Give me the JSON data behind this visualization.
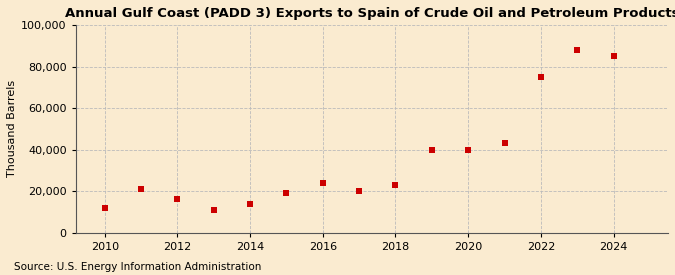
{
  "title": "Annual Gulf Coast (PADD 3) Exports to Spain of Crude Oil and Petroleum Products",
  "ylabel": "Thousand Barrels",
  "source": "Source: U.S. Energy Information Administration",
  "years": [
    2010,
    2011,
    2012,
    2013,
    2014,
    2015,
    2016,
    2017,
    2018,
    2019,
    2020,
    2021,
    2022,
    2023,
    2024
  ],
  "values": [
    12000,
    21000,
    16000,
    11000,
    14000,
    19000,
    24000,
    20000,
    23000,
    40000,
    40000,
    43000,
    75000,
    88000,
    85000
  ],
  "marker_color": "#cc0000",
  "marker_size": 4,
  "background_color": "#faebd0",
  "grid_color": "#bbbbbb",
  "ylim": [
    0,
    100000
  ],
  "yticks": [
    0,
    20000,
    40000,
    60000,
    80000,
    100000
  ],
  "xticks": [
    2010,
    2012,
    2014,
    2016,
    2018,
    2020,
    2022,
    2024
  ],
  "xlim": [
    2009.2,
    2025.5
  ],
  "title_fontsize": 9.5,
  "label_fontsize": 8,
  "tick_fontsize": 8,
  "source_fontsize": 7.5
}
